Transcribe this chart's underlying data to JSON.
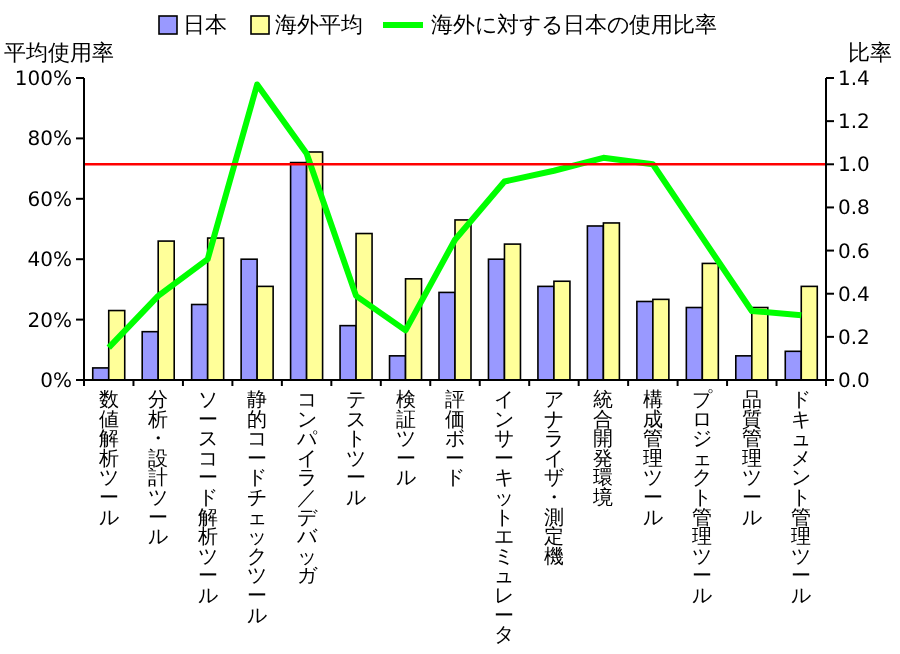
{
  "chart_data": {
    "type": "bar",
    "categories": [
      "数値解析ツール",
      "分析・設計ツール",
      "ソースコード解析ツール",
      "静的コードチェックツール",
      "コンパイラ／デバッガ",
      "テストツール",
      "検証ツール",
      "評価ボード",
      "インサーキットエミュレータ",
      "アナライザ・測定機",
      "統合開発環境",
      "構成管理ツール",
      "プロジェクト管理ツール",
      "品質管理ツール",
      "ドキュメント管理ツール"
    ],
    "series": [
      {
        "name": "日本",
        "color": "#9999ff",
        "values": [
          4,
          16,
          25,
          40,
          72,
          18,
          8,
          29,
          40,
          31,
          51,
          26,
          24,
          8,
          9.5
        ]
      },
      {
        "name": "海外平均",
        "color": "#ffff99",
        "values": [
          23,
          46,
          47,
          31,
          75.5,
          48.5,
          33.5,
          53,
          45,
          32.7,
          52,
          26.7,
          38.6,
          24,
          31
        ]
      },
      {
        "name": "海外に対する日本の使用比率",
        "type": "line",
        "axis": "y2",
        "color": "#00ff00",
        "values": [
          0.15,
          0.39,
          0.56,
          1.37,
          1.05,
          0.39,
          0.23,
          0.65,
          0.92,
          0.97,
          1.03,
          1.0,
          0.66,
          0.32,
          0.3
        ]
      }
    ],
    "ylabel": "平均使用率",
    "y2label": "比率",
    "ylim": [
      0,
      100
    ],
    "yticks": [
      {
        "value": 0,
        "label": "0%"
      },
      {
        "value": 20,
        "label": "20%"
      },
      {
        "value": 40,
        "label": "40%"
      },
      {
        "value": 60,
        "label": "60%"
      },
      {
        "value": 80,
        "label": "80%"
      },
      {
        "value": 100,
        "label": "100%"
      }
    ],
    "y2lim": [
      0,
      1.4
    ],
    "y2ticks": [
      {
        "value": 0,
        "label": "0.0"
      },
      {
        "value": 0.2,
        "label": "0.2"
      },
      {
        "value": 0.4,
        "label": "0.4"
      },
      {
        "value": 0.6,
        "label": "0.6"
      },
      {
        "value": 0.8,
        "label": "0.8"
      },
      {
        "value": 1.0,
        "label": "1.0"
      },
      {
        "value": 1.2,
        "label": "1.2"
      },
      {
        "value": 1.4,
        "label": "1.4"
      }
    ],
    "ref_lines": [
      {
        "axis": "y2",
        "value": 1.0,
        "color": "#ff0000"
      }
    ],
    "legend": "top",
    "grid": false
  }
}
